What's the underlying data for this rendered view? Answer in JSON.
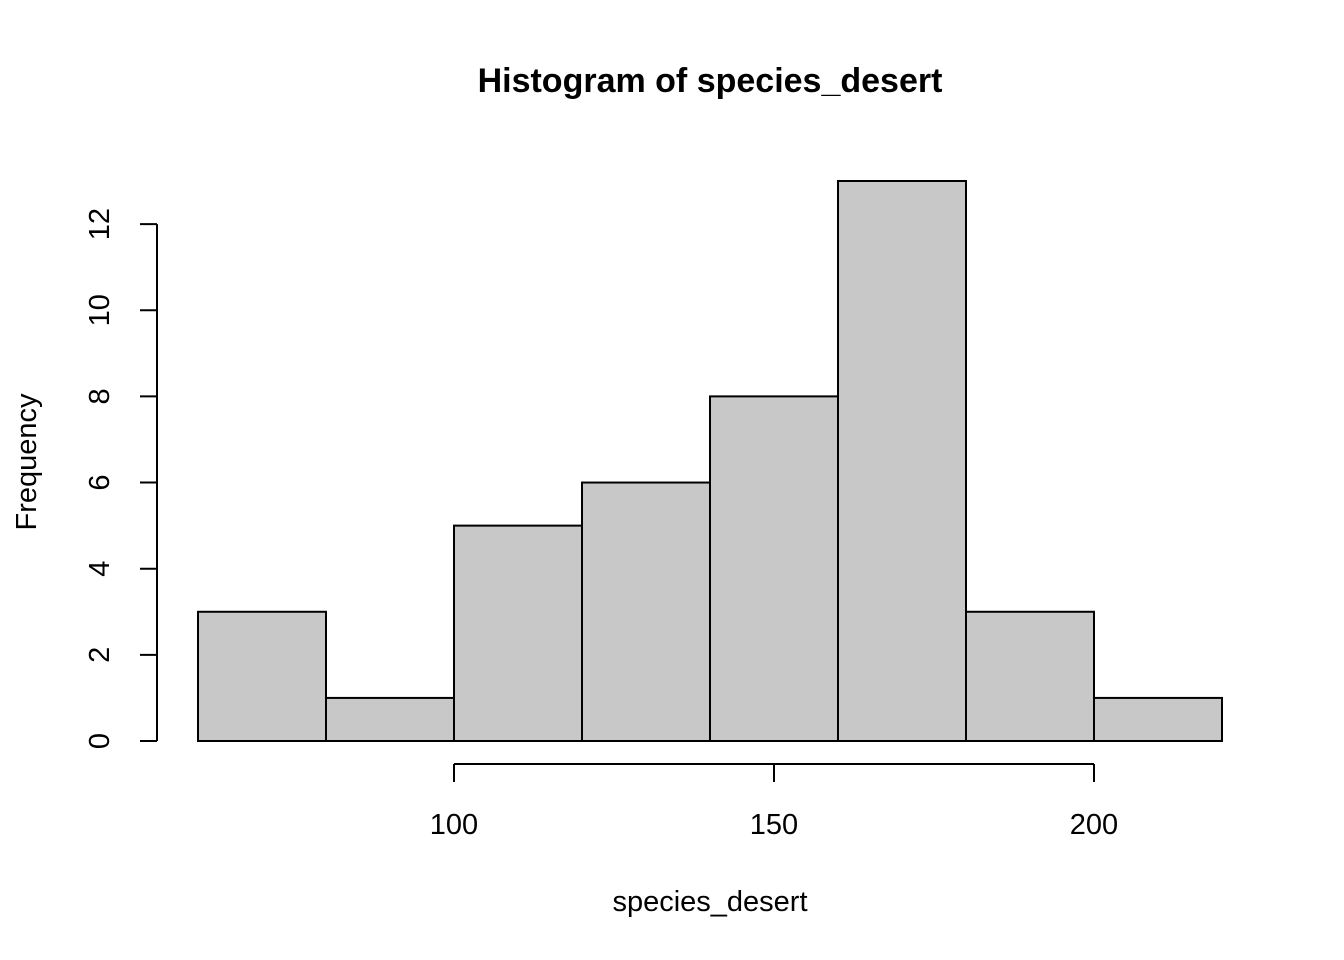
{
  "chart_data": {
    "type": "bar",
    "title": "Histogram of species_desert",
    "xlabel": "species_desert",
    "ylabel": "Frequency",
    "bin_edges": [
      60,
      80,
      100,
      120,
      140,
      160,
      180,
      200,
      220
    ],
    "values": [
      3,
      1,
      5,
      6,
      8,
      13,
      3,
      1
    ],
    "xlim": [
      55,
      230
    ],
    "ylim": [
      0,
      13
    ],
    "x_ticks": [
      100,
      150,
      200
    ],
    "y_ticks": [
      0,
      2,
      4,
      6,
      8,
      10,
      12
    ],
    "bar_color": "#c8c8c8",
    "grid": false,
    "legend": "none"
  }
}
